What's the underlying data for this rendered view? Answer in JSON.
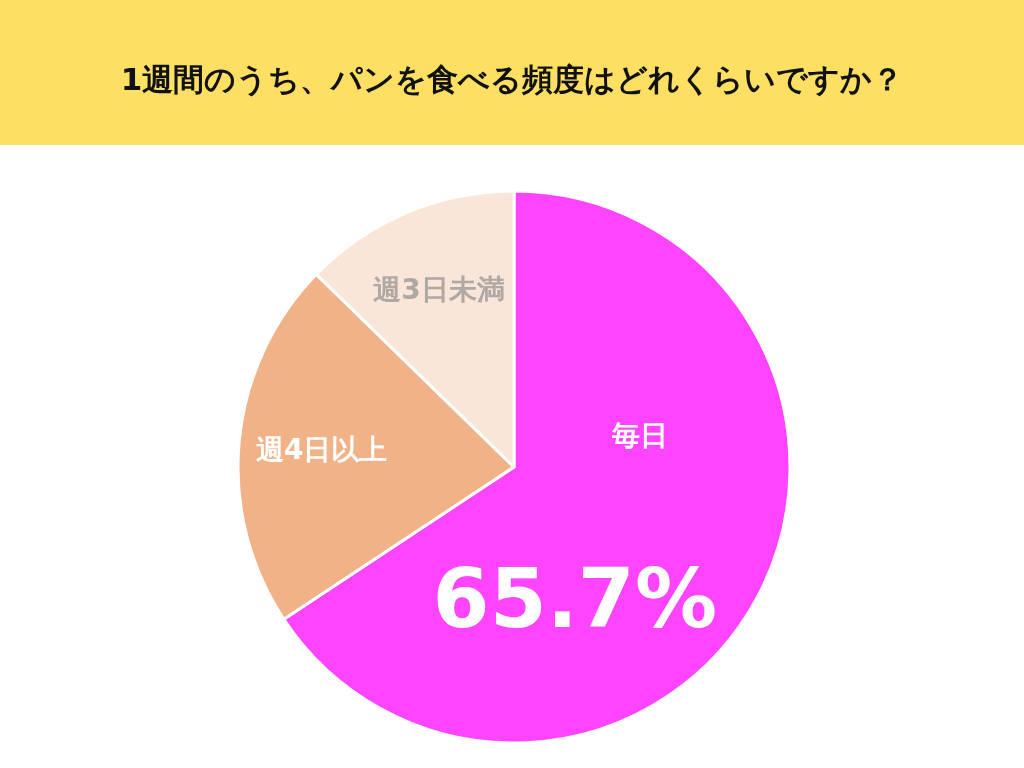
{
  "chart_data": {
    "type": "pie",
    "title": "1週間のうち、パンを食べる頻度はどれくらいですか？",
    "categories": [
      "毎日",
      "週4日以上",
      "週3日未満"
    ],
    "values": [
      65.7,
      21.6,
      12.7
    ],
    "colors": [
      "#ff44ff",
      "#f2b287",
      "#fae5d9"
    ],
    "value_labels": [
      "65.7%",
      null,
      null
    ],
    "legend": false
  }
}
